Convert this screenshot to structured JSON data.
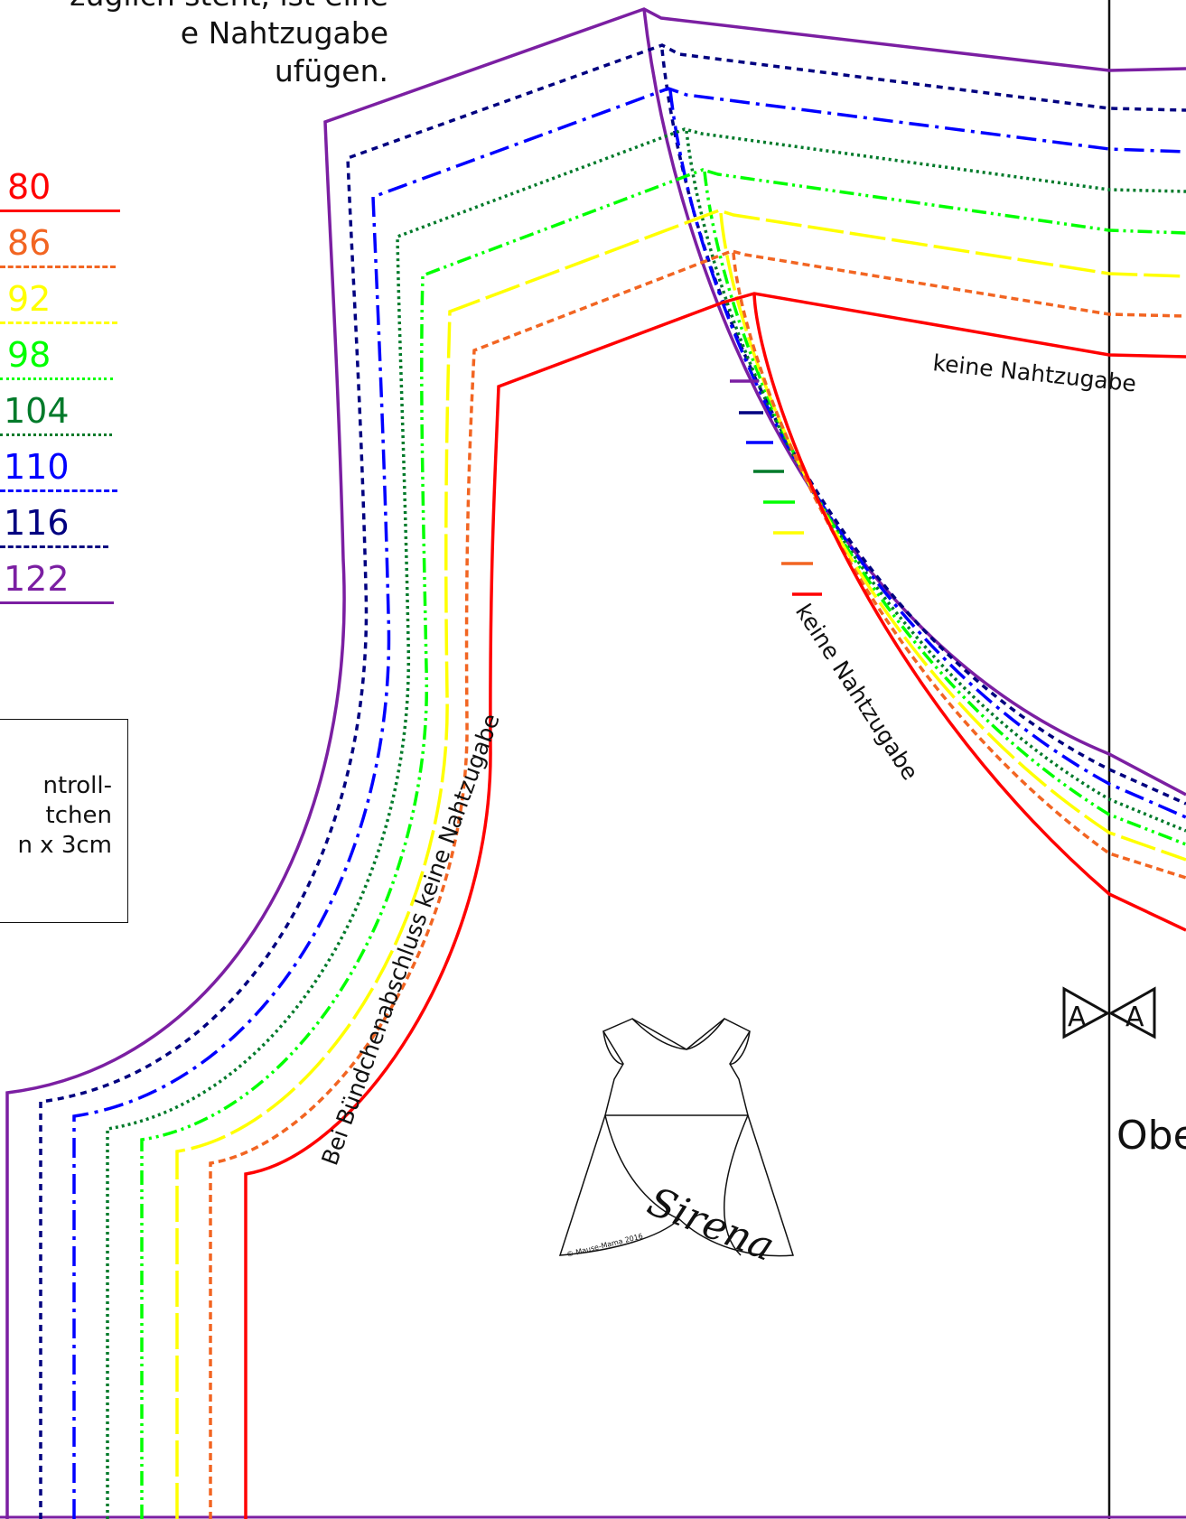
{
  "intro_text": "zuglich steht, ist eine\ne Nahtzugabe\nufügen.",
  "sizes": [
    {
      "label": "80",
      "color": "#ff0000",
      "line": "solid"
    },
    {
      "label": "86",
      "color": "#f26522",
      "line": "dashed"
    },
    {
      "label": "92",
      "color": "#ffff00",
      "line": "long-dash"
    },
    {
      "label": "98",
      "color": "#00ff00",
      "line": "dash-dot-dot"
    },
    {
      "label": "104",
      "color": "#007a2a",
      "line": "dotted"
    },
    {
      "label": "110",
      "color": "#0000ff",
      "line": "dash-dot"
    },
    {
      "label": "116",
      "color": "#000080",
      "line": "short-dash"
    },
    {
      "label": "122",
      "color": "#7b1fa2",
      "line": "solid"
    }
  ],
  "test_square_text": "ntroll-\ntchen\nn x 3cm",
  "labels": {
    "neck_no_allowance": "keine Nahtzugabe",
    "shoulder_no_allowance": "keine Nahtzugabe",
    "armhole_cuff_note": "Bei Bündchenabschluss keine Nahtzugabe",
    "size_name_partial": "Obe"
  },
  "notch_marks": [
    "A",
    "A"
  ],
  "illustration": {
    "logo_text": "Sirena",
    "copyright": "© Mause-Mama 2016"
  }
}
